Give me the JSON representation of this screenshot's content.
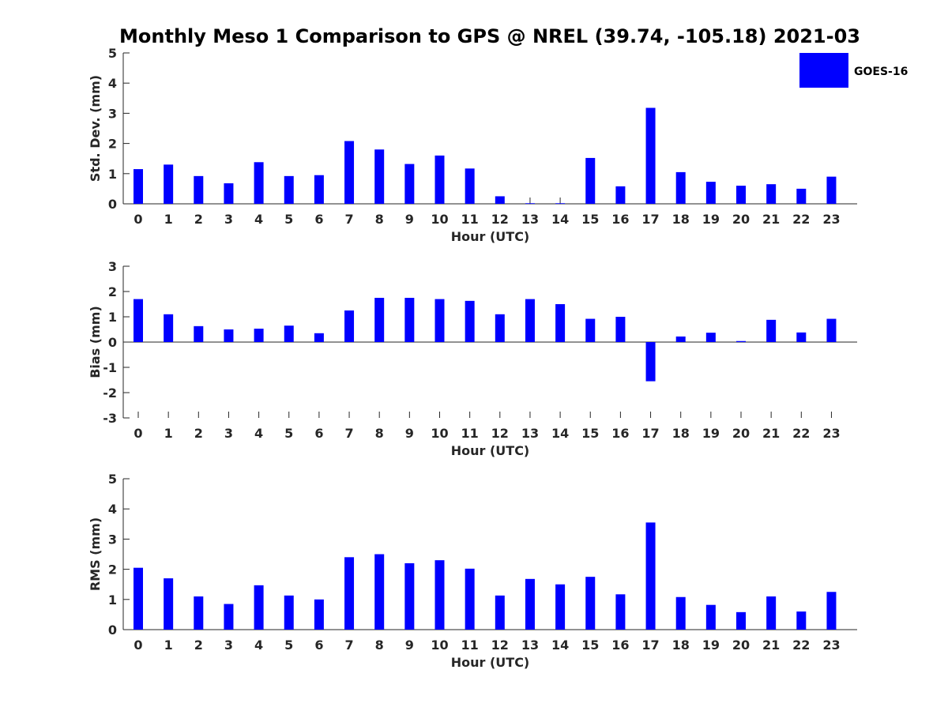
{
  "title": "Monthly Meso 1 Comparison to GPS @ NREL (39.74, -105.18) 2021-03",
  "legend": {
    "label": "GOES-16",
    "color": "#0000ff",
    "placement": "top-right"
  },
  "chart_data": [
    {
      "type": "bar",
      "xlabel": "Hour (UTC)",
      "ylabel": "Std. Dev. (mm)",
      "ylim": [
        0,
        5
      ],
      "yticks": [
        0,
        1,
        2,
        3,
        4,
        5
      ],
      "categories": [
        "0",
        "1",
        "2",
        "3",
        "4",
        "5",
        "6",
        "7",
        "8",
        "9",
        "10",
        "11",
        "12",
        "13",
        "14",
        "15",
        "16",
        "17",
        "18",
        "19",
        "20",
        "21",
        "22",
        "23"
      ],
      "series": [
        {
          "name": "GOES-16",
          "values": [
            1.15,
            1.3,
            0.92,
            0.68,
            1.38,
            0.92,
            0.95,
            2.08,
            1.8,
            1.32,
            1.6,
            1.17,
            0.25,
            0.02,
            0.02,
            1.52,
            0.58,
            3.18,
            1.05,
            0.73,
            0.6,
            0.65,
            0.5,
            0.9
          ]
        }
      ]
    },
    {
      "type": "bar",
      "xlabel": "Hour (UTC)",
      "ylabel": "Bias (mm)",
      "ylim": [
        -3,
        3
      ],
      "yticks": [
        -3,
        -2,
        -1,
        0,
        1,
        2,
        3
      ],
      "categories": [
        "0",
        "1",
        "2",
        "3",
        "4",
        "5",
        "6",
        "7",
        "8",
        "9",
        "10",
        "11",
        "12",
        "13",
        "14",
        "15",
        "16",
        "17",
        "18",
        "19",
        "20",
        "21",
        "22",
        "23"
      ],
      "series": [
        {
          "name": "GOES-16",
          "values": [
            1.7,
            1.1,
            0.63,
            0.5,
            0.53,
            0.65,
            0.35,
            1.25,
            1.75,
            1.75,
            1.7,
            1.63,
            1.1,
            1.7,
            1.5,
            0.92,
            1.0,
            -1.55,
            0.22,
            0.37,
            0.04,
            0.88,
            0.38,
            0.92
          ]
        }
      ]
    },
    {
      "type": "bar",
      "xlabel": "Hour (UTC)",
      "ylabel": "RMS (mm)",
      "ylim": [
        0,
        5
      ],
      "yticks": [
        0,
        1,
        2,
        3,
        4,
        5
      ],
      "categories": [
        "0",
        "1",
        "2",
        "3",
        "4",
        "5",
        "6",
        "7",
        "8",
        "9",
        "10",
        "11",
        "12",
        "13",
        "14",
        "15",
        "16",
        "17",
        "18",
        "19",
        "20",
        "21",
        "22",
        "23"
      ],
      "series": [
        {
          "name": "GOES-16",
          "values": [
            2.05,
            1.7,
            1.1,
            0.85,
            1.47,
            1.13,
            1.0,
            2.4,
            2.5,
            2.2,
            2.3,
            2.02,
            1.13,
            1.68,
            1.5,
            1.75,
            1.17,
            3.55,
            1.08,
            0.82,
            0.58,
            1.1,
            0.6,
            1.25
          ]
        }
      ]
    }
  ]
}
